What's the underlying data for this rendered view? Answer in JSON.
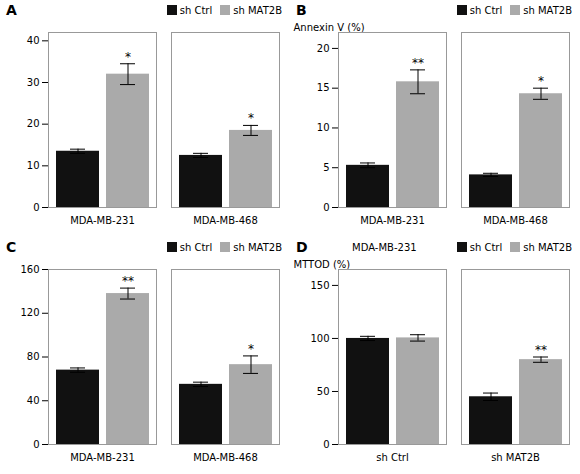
{
  "chart_data": [
    {
      "type": "bar",
      "panel_label": "A",
      "categories": [
        "MDA-MB-231",
        "MDA-MB-468"
      ],
      "series": [
        {
          "name": "sh Ctrl",
          "color": "#111111",
          "values": [
            13.5,
            12.5
          ],
          "errors": [
            0.5,
            0.5
          ]
        },
        {
          "name": "sh MAT2B",
          "color": "#aaaaaa",
          "values": [
            32.0,
            18.5
          ],
          "errors": [
            2.5,
            1.2
          ],
          "annotations": [
            "*",
            "*"
          ]
        }
      ],
      "ylim": [
        0,
        42
      ],
      "yticks": [
        0,
        10,
        20,
        30,
        40
      ],
      "legend": "upper right"
    },
    {
      "type": "bar",
      "panel_label": "B",
      "ylabel": "Annexin V (%)",
      "categories": [
        "MDA-MB-231",
        "MDA-MB-468"
      ],
      "series": [
        {
          "name": "sh Ctrl",
          "color": "#111111",
          "values": [
            5.3,
            4.1
          ],
          "errors": [
            0.3,
            0.2
          ]
        },
        {
          "name": "sh MAT2B",
          "color": "#aaaaaa",
          "values": [
            15.8,
            14.3
          ],
          "errors": [
            1.5,
            0.7
          ],
          "annotations": [
            "**",
            "*"
          ]
        }
      ],
      "ylim": [
        0,
        22
      ],
      "yticks": [
        0,
        5,
        10,
        15,
        20
      ],
      "legend": "upper right"
    },
    {
      "type": "bar",
      "panel_label": "C",
      "categories": [
        "MDA-MB-231",
        "MDA-MB-468"
      ],
      "series": [
        {
          "name": "sh Ctrl",
          "color": "#111111",
          "values": [
            68.0,
            55.0
          ],
          "errors": [
            2.0,
            2.0
          ]
        },
        {
          "name": "sh MAT2B",
          "color": "#aaaaaa",
          "values": [
            138.0,
            73.0
          ],
          "errors": [
            5.0,
            8.0
          ],
          "annotations": [
            "**",
            "*"
          ]
        }
      ],
      "ylim": [
        0,
        160
      ],
      "yticks": [
        0,
        40,
        80,
        120,
        160
      ],
      "legend": "upper right"
    },
    {
      "type": "bar",
      "panel_label": "D",
      "title": "MDA-MB-231",
      "ylabel": "MTTOD (%)",
      "categories": [
        "sh Ctrl",
        "sh MAT2B"
      ],
      "series": [
        {
          "name": "sh Ctrl",
          "color": "#111111",
          "values": [
            100.0,
            45.0
          ],
          "errors": [
            2.0,
            3.5
          ]
        },
        {
          "name": "sh MAT2B",
          "color": "#aaaaaa",
          "values": [
            100.5,
            80.0
          ],
          "errors": [
            3.0,
            2.5
          ],
          "annotations": [
            null,
            "**"
          ]
        }
      ],
      "ylim": [
        0,
        165
      ],
      "yticks": [
        0,
        50,
        100,
        150
      ],
      "legend": "upper right"
    }
  ]
}
